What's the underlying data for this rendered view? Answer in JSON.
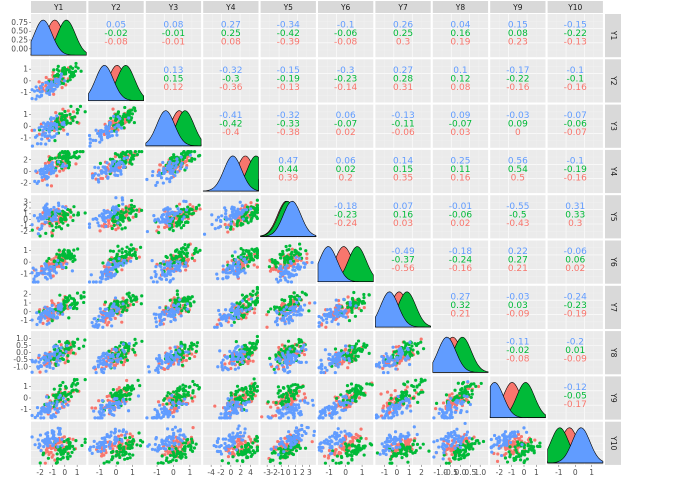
{
  "chart_data": {
    "type": "scatter-matrix",
    "variables": [
      "Y1",
      "Y2",
      "Y3",
      "Y4",
      "Y5",
      "Y6",
      "Y7",
      "Y8",
      "Y9",
      "Y10"
    ],
    "group_colors": [
      "#f8766d",
      "#00ba38",
      "#619cff"
    ],
    "group_centers": [
      [
        -0.2,
        0.05,
        0.3,
        0.75,
        -0.1,
        -0.1,
        -0.2,
        -0.4,
        -0.3,
        -0.3
      ],
      [
        0.4,
        0.5,
        0.6,
        1.3,
        -0.05,
        0.6,
        0.2,
        0.1,
        0.4,
        -0.8
      ],
      [
        -0.8,
        -0.6,
        -0.4,
        0.1,
        0.2,
        -0.9,
        -0.7,
        -0.7,
        -1.2,
        0.3
      ]
    ],
    "correlations": [
      {
        "row": 0,
        "col": 1,
        "values": [
          "0.05",
          "-0.02",
          "-0.08"
        ]
      },
      {
        "row": 0,
        "col": 2,
        "values": [
          "0.08",
          "-0.01",
          "-0.01"
        ]
      },
      {
        "row": 0,
        "col": 3,
        "values": [
          "0.27",
          "0.25",
          "0.08"
        ]
      },
      {
        "row": 0,
        "col": 4,
        "values": [
          "-0.34",
          "-0.42",
          "-0.39"
        ]
      },
      {
        "row": 0,
        "col": 5,
        "values": [
          "-0.1",
          "-0.06",
          "-0.08"
        ]
      },
      {
        "row": 0,
        "col": 6,
        "values": [
          "0.26",
          "0.25",
          "0.3"
        ]
      },
      {
        "row": 0,
        "col": 7,
        "values": [
          "0.04",
          "0.16",
          "0.19"
        ]
      },
      {
        "row": 0,
        "col": 8,
        "values": [
          "0.15",
          "0.08",
          "0.23"
        ]
      },
      {
        "row": 0,
        "col": 9,
        "values": [
          "-0.15",
          "-0.22",
          "-0.13"
        ]
      },
      {
        "row": 1,
        "col": 2,
        "values": [
          "0.13",
          "0.15",
          "0.12"
        ]
      },
      {
        "row": 1,
        "col": 3,
        "values": [
          "-0.32",
          "-0.3",
          "-0.36"
        ]
      },
      {
        "row": 1,
        "col": 4,
        "values": [
          "-0.15",
          "-0.19",
          "-0.13"
        ]
      },
      {
        "row": 1,
        "col": 5,
        "values": [
          "-0.3",
          "-0.23",
          "-0.14"
        ]
      },
      {
        "row": 1,
        "col": 6,
        "values": [
          "0.27",
          "0.28",
          "0.31"
        ]
      },
      {
        "row": 1,
        "col": 7,
        "values": [
          "0.1",
          "0.12",
          "0.08"
        ]
      },
      {
        "row": 1,
        "col": 8,
        "values": [
          "-0.17",
          "-0.22",
          "-0.16"
        ]
      },
      {
        "row": 1,
        "col": 9,
        "values": [
          "-0.1",
          "-0.1",
          "-0.16"
        ]
      },
      {
        "row": 2,
        "col": 3,
        "values": [
          "-0.41",
          "-0.42",
          "-0.4"
        ]
      },
      {
        "row": 2,
        "col": 4,
        "values": [
          "-0.32",
          "-0.33",
          "-0.38"
        ]
      },
      {
        "row": 2,
        "col": 5,
        "values": [
          "0.06",
          "-0.07",
          "0.02"
        ]
      },
      {
        "row": 2,
        "col": 6,
        "values": [
          "-0.13",
          "-0.11",
          "-0.06"
        ]
      },
      {
        "row": 2,
        "col": 7,
        "values": [
          "0.09",
          "-0.07",
          "0.03"
        ]
      },
      {
        "row": 2,
        "col": 8,
        "values": [
          "-0.03",
          "0.09",
          "0"
        ]
      },
      {
        "row": 2,
        "col": 9,
        "values": [
          "-0.07",
          "-0.06",
          "-0.07"
        ]
      },
      {
        "row": 3,
        "col": 4,
        "values": [
          "0.47",
          "0.44",
          "0.39"
        ]
      },
      {
        "row": 3,
        "col": 5,
        "values": [
          "0.06",
          "0.02",
          "0.2"
        ]
      },
      {
        "row": 3,
        "col": 6,
        "values": [
          "0.14",
          "0.15",
          "0.35"
        ]
      },
      {
        "row": 3,
        "col": 7,
        "values": [
          "0.25",
          "0.11",
          "0.16"
        ]
      },
      {
        "row": 3,
        "col": 8,
        "values": [
          "0.56",
          "0.54",
          "0.5"
        ]
      },
      {
        "row": 3,
        "col": 9,
        "values": [
          "-0.1",
          "-0.19",
          "-0.16"
        ]
      },
      {
        "row": 4,
        "col": 5,
        "values": [
          "-0.18",
          "-0.23",
          "-0.24"
        ]
      },
      {
        "row": 4,
        "col": 6,
        "values": [
          "0.07",
          "0.16",
          "0.03"
        ]
      },
      {
        "row": 4,
        "col": 7,
        "values": [
          "-0.01",
          "-0.06",
          "0.02"
        ]
      },
      {
        "row": 4,
        "col": 8,
        "values": [
          "-0.55",
          "-0.5",
          "-0.43"
        ]
      },
      {
        "row": 4,
        "col": 9,
        "values": [
          "0.31",
          "0.33",
          "0.3"
        ]
      },
      {
        "row": 5,
        "col": 6,
        "values": [
          "-0.49",
          "-0.37",
          "-0.56"
        ]
      },
      {
        "row": 5,
        "col": 7,
        "values": [
          "-0.18",
          "-0.24",
          "-0.16"
        ]
      },
      {
        "row": 5,
        "col": 8,
        "values": [
          "0.22",
          "0.27",
          "0.21"
        ]
      },
      {
        "row": 5,
        "col": 9,
        "values": [
          "-0.06",
          "0.06",
          "0.02"
        ]
      },
      {
        "row": 6,
        "col": 7,
        "values": [
          "0.27",
          "0.32",
          "0.21"
        ]
      },
      {
        "row": 6,
        "col": 8,
        "values": [
          "-0.03",
          "0.03",
          "-0.09"
        ]
      },
      {
        "row": 6,
        "col": 9,
        "values": [
          "-0.24",
          "-0.23",
          "-0.19"
        ]
      },
      {
        "row": 7,
        "col": 8,
        "values": [
          "-0.11",
          "-0.02",
          "-0.08"
        ]
      },
      {
        "row": 7,
        "col": 9,
        "values": [
          "-0.2",
          "0.01",
          "-0.09"
        ]
      },
      {
        "row": 8,
        "col": 9,
        "values": [
          "-0.12",
          "-0.05",
          "-0.17"
        ]
      }
    ],
    "y_ticks": [
      [
        "0.75",
        "0.50",
        "0.25",
        "0.00"
      ],
      [
        "1",
        "0",
        "-1"
      ],
      [
        "1",
        "0",
        "-1"
      ],
      [
        "2",
        "0",
        "-2"
      ],
      [
        "3",
        "2",
        "1",
        "0",
        "-1",
        "-2"
      ],
      [
        "1",
        "0",
        "-1"
      ],
      [
        "2",
        "1",
        "0",
        "-1"
      ],
      [
        "1.0",
        "0.5",
        "0.0",
        "-0.5",
        "-1.0"
      ],
      [
        "1",
        "0",
        "-1"
      ],
      []
    ],
    "x_ticks": [
      [
        "-2",
        "-1",
        "0",
        "1"
      ],
      [
        "-1",
        "0",
        "1"
      ],
      [
        "-1",
        "0",
        "1"
      ],
      [
        "-4",
        "-2",
        "0",
        "2",
        "4"
      ],
      [
        "-3",
        "-2",
        "-1",
        "0",
        "1",
        "2",
        "3"
      ],
      [
        "-1",
        "0",
        "1"
      ],
      [
        "-1",
        "0",
        "1",
        "2"
      ],
      [
        "-1.0",
        "-0.5",
        "0.0",
        "0.5",
        "1.0"
      ],
      [
        "-2",
        "-1",
        "0",
        "1"
      ],
      [
        "-1",
        "0",
        "1"
      ]
    ]
  }
}
